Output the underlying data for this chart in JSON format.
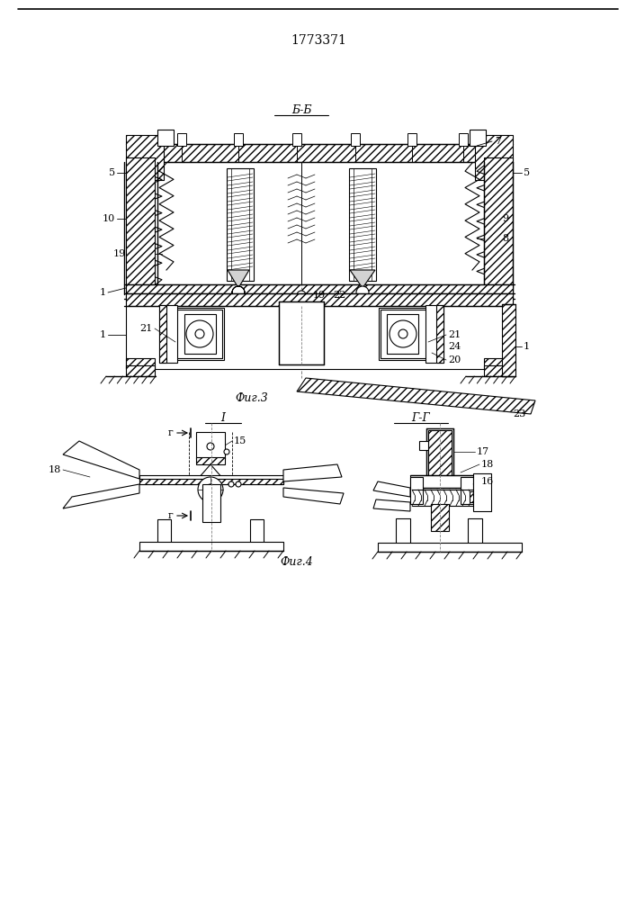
{
  "title": "1773371",
  "bg_color": "#ffffff",
  "fig3_label": "Фиг.3",
  "fig4_label": "Фиг.4",
  "section_bb": "Б-Б",
  "section_gg": "Г-Г"
}
